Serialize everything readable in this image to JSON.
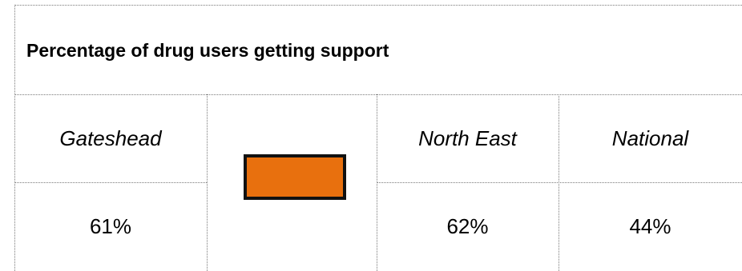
{
  "title": "Percentage of drug users getting support",
  "columns": {
    "gateshead": "Gateshead",
    "north_east": "North East",
    "national": "National"
  },
  "values": {
    "gateshead": "61%",
    "north_east": "62%",
    "national": "44%"
  },
  "rag_indicator": {
    "color": "#E8700E",
    "border_color": "#111111"
  },
  "border_color": "#7a7a7a"
}
